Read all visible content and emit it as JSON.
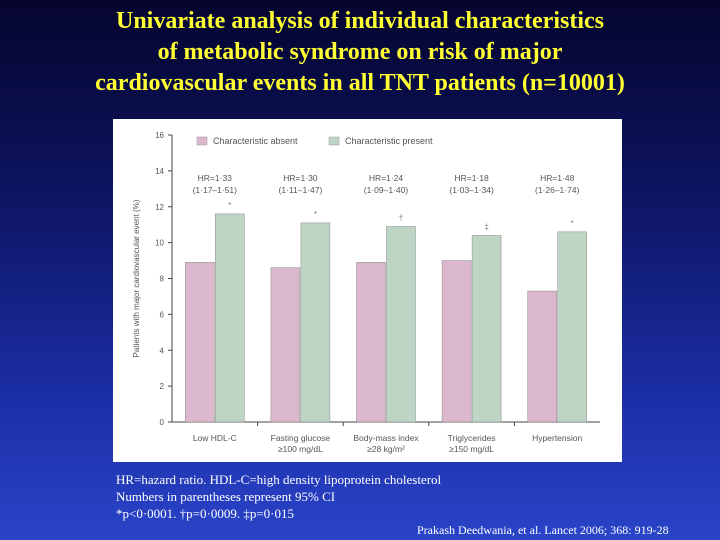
{
  "slide": {
    "title_lines": [
      "Univariate analysis of individual characteristics",
      "of  metabolic  syndrome  on  risk  of  major",
      "cardiovascular events in all TNT patients (n=10001)"
    ],
    "footnotes": [
      "HR=hazard ratio. HDL-C=high density lipoprotein cholesterol",
      "Numbers in parentheses represent 95% CI",
      "*p<0·0001. †p=0·0009. ‡p=0·015"
    ],
    "citation": "Prakash Deedwania, et al. Lancet 2006; 368: 919-28"
  },
  "chart_data": {
    "type": "bar",
    "title": "",
    "xlabel": "",
    "ylabel": "Patients with major cardiovascular event (%)",
    "ylim": [
      0,
      16
    ],
    "yticks": [
      "0",
      "2",
      "4",
      "6",
      "8",
      "10",
      "12",
      "14",
      "16"
    ],
    "grid": false,
    "legend_position": "top-left",
    "categories": [
      [
        "Low HDL-C"
      ],
      [
        "Fasting glucose",
        "≥100 mg/dL"
      ],
      [
        "Body-mass index",
        "≥28 kg/m²"
      ],
      [
        "Triglycerides",
        "≥150 mg/dL"
      ],
      [
        "Hypertension"
      ]
    ],
    "series": [
      {
        "name": "Characteristic absent",
        "color": "#dcb8cf",
        "values": [
          8.9,
          8.6,
          8.9,
          9.0,
          7.3
        ]
      },
      {
        "name": "Characteristic present",
        "color": "#bed5c5",
        "values": [
          11.6,
          11.1,
          10.9,
          10.4,
          10.6
        ]
      }
    ],
    "annotations": [
      {
        "hr": "HR=1·33",
        "ci": "(1·17–1·51)",
        "sig": "*"
      },
      {
        "hr": "HR=1·30",
        "ci": "(1·11–1·47)",
        "sig": "*"
      },
      {
        "hr": "HR=1·24",
        "ci": "(1·09–1·40)",
        "sig": "†"
      },
      {
        "hr": "HR=1·18",
        "ci": "(1·03–1·34)",
        "sig": "‡"
      },
      {
        "hr": "HR=1·48",
        "ci": "(1·26–1·74)",
        "sig": "*"
      }
    ]
  }
}
